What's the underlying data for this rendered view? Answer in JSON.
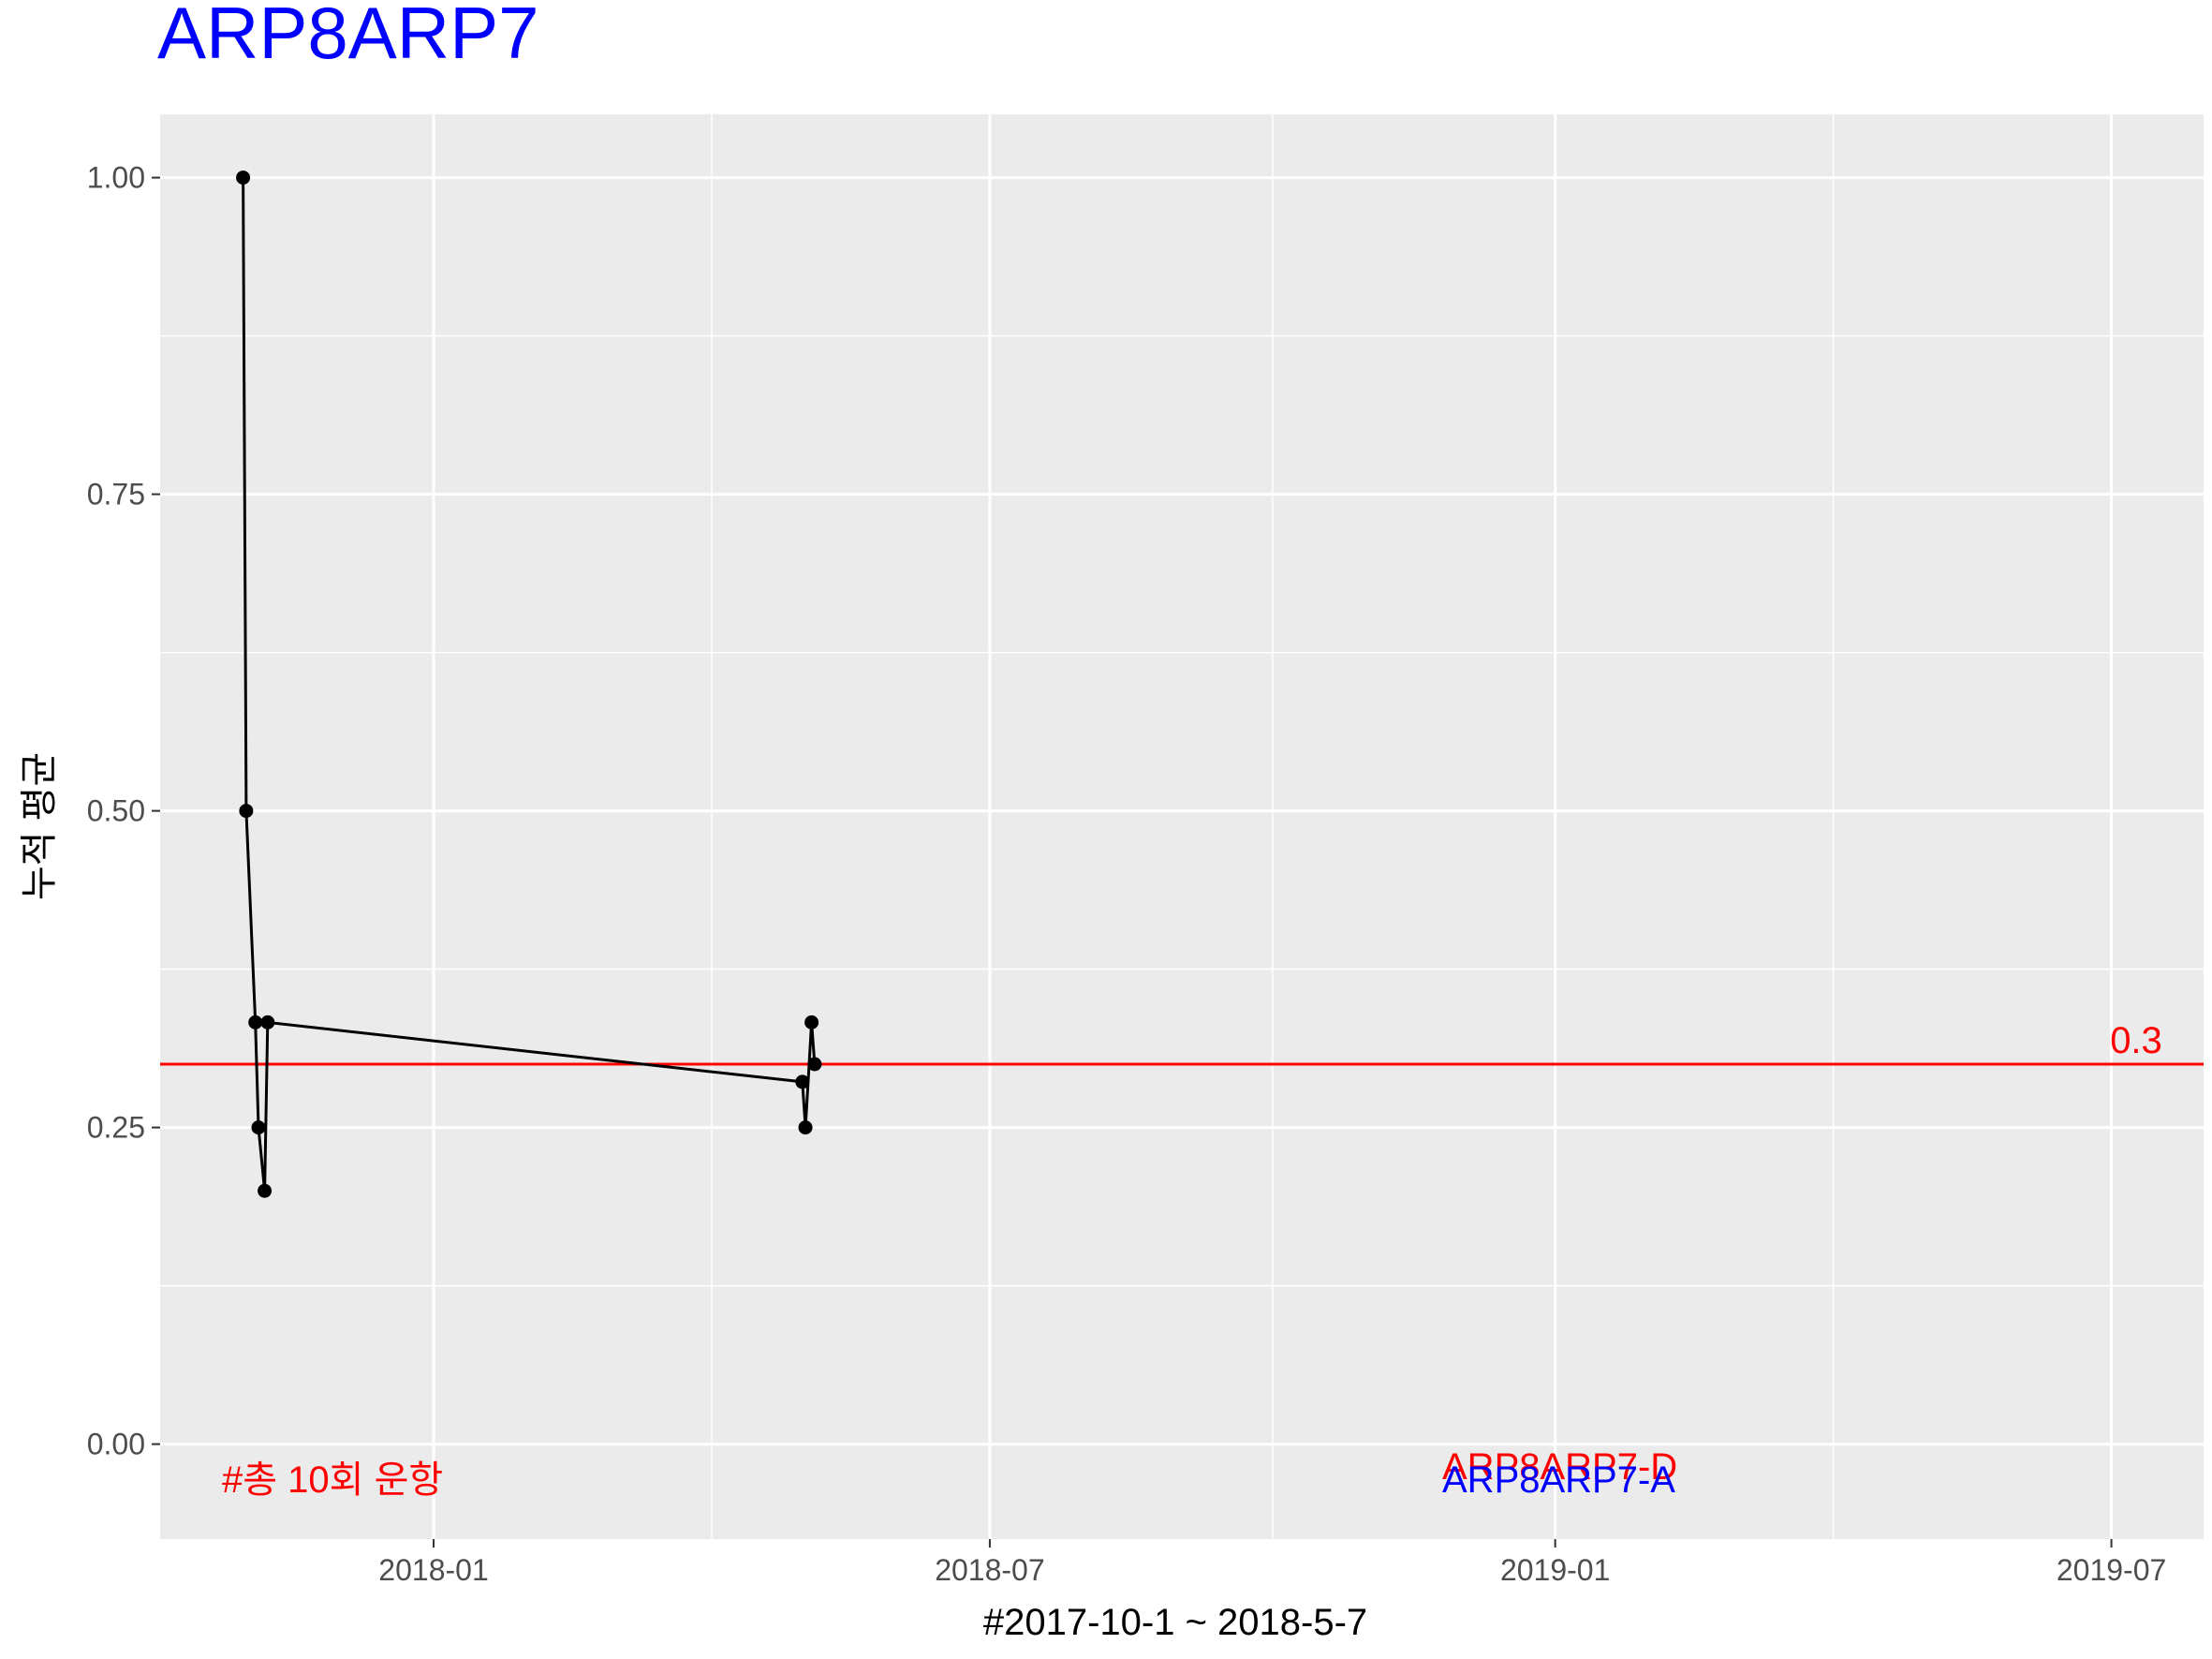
{
  "chart_data": {
    "type": "line",
    "title": "ARP8ARP7",
    "xlabel": "#2017-10-1 ~ 2018-5-7",
    "ylabel": "누적 평균",
    "xlim": [
      "2017-10-04",
      "2019-07-31"
    ],
    "ylim": [
      -0.075,
      1.05
    ],
    "grid": true,
    "x_ticks": [
      "2018-01",
      "2018-07",
      "2019-01",
      "2019-07"
    ],
    "y_ticks": [
      "0.00",
      "0.25",
      "0.50",
      "0.75",
      "1.00"
    ],
    "y_tick_values": [
      0,
      0.25,
      0.5,
      0.75,
      1.0
    ],
    "series": [
      {
        "x": [
          "2017-10-31",
          "2017-11-01",
          "2017-11-04",
          "2017-11-05",
          "2017-11-07",
          "2017-11-08",
          "2018-05-01",
          "2018-05-02",
          "2018-05-04",
          "2018-05-05"
        ],
        "y": [
          1.0,
          0.5,
          0.333,
          0.25,
          0.2,
          0.333,
          0.286,
          0.25,
          0.333,
          0.3
        ]
      }
    ],
    "reference_line": {
      "y": 0.3,
      "label": "0.3"
    },
    "annotations": {
      "count_text": "#총 10회 운항",
      "label_d": "ARP8ARP7-D",
      "label_a": "ARP8ARP7-A"
    },
    "colors": {
      "title": "#0000ff",
      "series": "#000000",
      "reference": "#ff0000",
      "count_text": "#ff0000",
      "label_d": "#ff0000",
      "label_a": "#0000ff",
      "panel": "#ebebeb",
      "grid": "#ffffff"
    }
  }
}
